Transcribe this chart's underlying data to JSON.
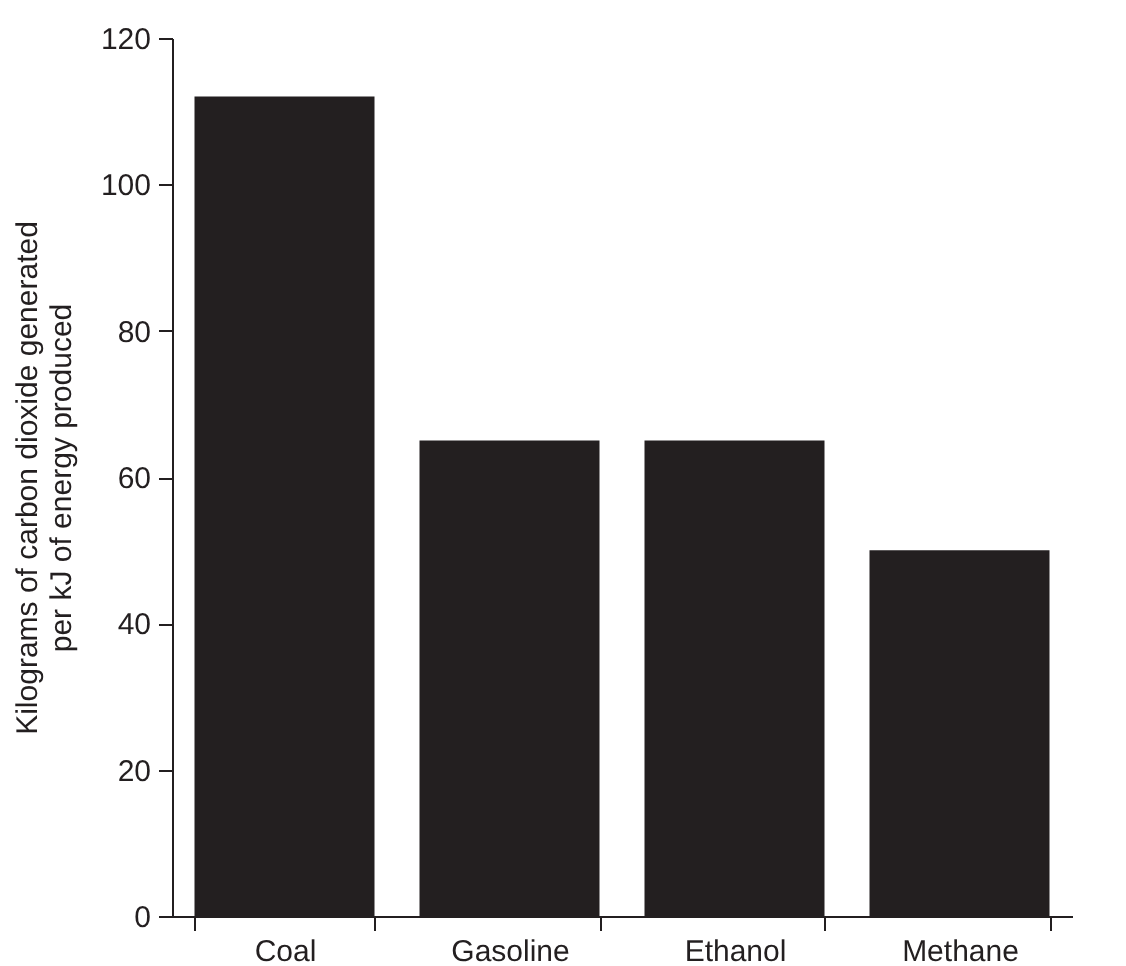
{
  "chart_data": {
    "type": "bar",
    "ylabel": "Kilograms of carbon dioxide generated\nper kJ of energy produced",
    "categories": [
      "Coal",
      "Gasoline",
      "Ethanol",
      "Methane"
    ],
    "values": [
      112,
      65,
      65,
      50
    ],
    "color": "#231f20",
    "ylim": [
      0,
      120
    ],
    "yticks": [
      0,
      20,
      40,
      60,
      80,
      100,
      120
    ],
    "grid": false
  }
}
